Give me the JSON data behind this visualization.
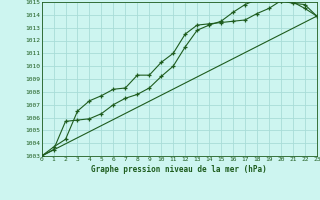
{
  "title": "Graphe pression niveau de la mer (hPa)",
  "background_color": "#cdf5f0",
  "line_color": "#1e5c1e",
  "grid_color": "#a8ddd8",
  "x_min": 0,
  "x_max": 23,
  "y_min": 1003,
  "y_max": 1015,
  "series1_x": [
    0,
    1,
    2,
    3,
    4,
    5,
    6,
    7,
    8,
    9,
    10,
    11,
    12,
    13,
    14,
    15,
    16,
    17,
    18,
    19,
    20,
    21,
    22,
    23
  ],
  "series1_y": [
    1003.0,
    1003.7,
    1004.3,
    1006.5,
    1007.3,
    1007.7,
    1008.2,
    1008.3,
    1009.3,
    1009.3,
    1010.3,
    1011.0,
    1012.5,
    1013.2,
    1013.3,
    1013.4,
    1013.5,
    1013.6,
    1014.1,
    1014.5,
    1015.1,
    1014.9,
    1014.8,
    1013.9
  ],
  "series2_x": [
    0,
    1,
    2,
    3,
    4,
    5,
    6,
    7,
    8,
    9,
    10,
    11,
    12,
    13,
    14,
    15,
    16,
    17,
    18,
    19,
    20,
    21,
    22,
    23
  ],
  "series2_y": [
    1003.0,
    1003.5,
    1005.7,
    1005.8,
    1005.9,
    1006.3,
    1007.0,
    1007.5,
    1007.8,
    1008.3,
    1009.2,
    1010.0,
    1011.5,
    1012.8,
    1013.2,
    1013.5,
    1014.2,
    1014.8,
    1015.2,
    1015.3,
    1015.1,
    1015.0,
    1014.5,
    1013.9
  ],
  "series3_x": [
    0,
    23
  ],
  "series3_y": [
    1003.0,
    1013.9
  ]
}
